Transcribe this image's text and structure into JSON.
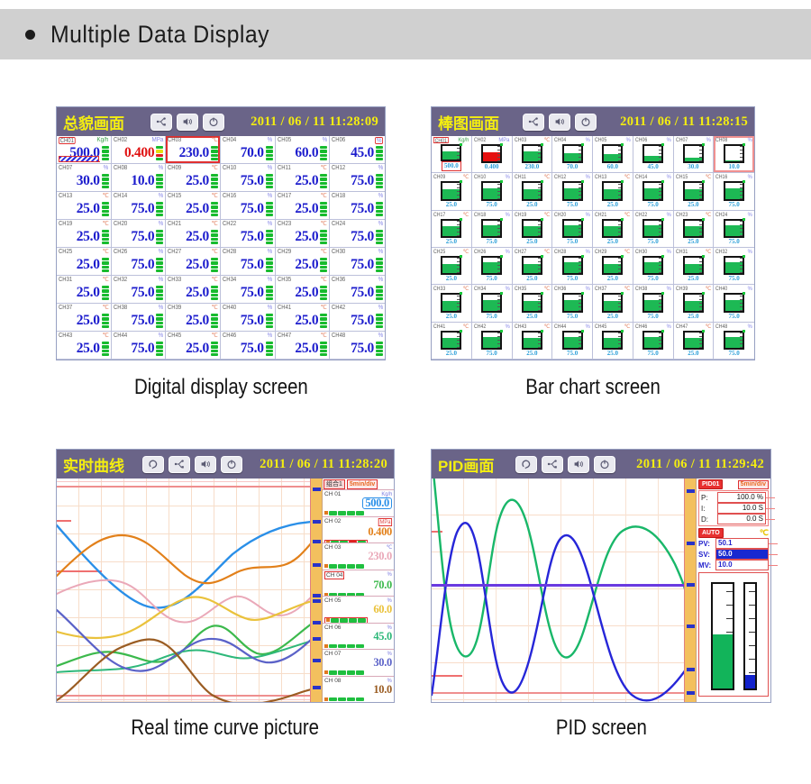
{
  "header": {
    "title": "Multiple Data Display"
  },
  "unit_colors": {
    "Kg/h": "#3aa04a",
    "MPa": "#8888e8",
    "℃": "#e07858",
    "%": "#8888e8"
  },
  "screens": {
    "digital": {
      "title": "总貌画面",
      "datetime": "2011 / 06 / 11  11:28:09",
      "caption": "Digital display screen",
      "icons": [
        "usb-icon",
        "speaker-icon",
        "power-icon"
      ],
      "channels": [
        {
          "id": "CH01",
          "value": "500.0",
          "unit": "Kg/h",
          "alarm": "label"
        },
        {
          "id": "CH02",
          "value": "0.400",
          "unit": "MPa",
          "alarm": "value",
          "ind": "mixed"
        },
        {
          "id": "CH03",
          "value": "230.0",
          "unit": "℃",
          "alarm": "cell"
        },
        {
          "id": "CH04",
          "value": "70.0",
          "unit": "%"
        },
        {
          "id": "CH05",
          "value": "60.0",
          "unit": "%"
        },
        {
          "id": "CH06",
          "value": "45.0",
          "unit": "%",
          "alarm": "unit"
        },
        {
          "id": "CH07",
          "value": "30.0",
          "unit": "%"
        },
        {
          "id": "CH08",
          "value": "10.0",
          "unit": "%"
        },
        {
          "id": "CH09",
          "value": "25.0",
          "unit": "℃"
        },
        {
          "id": "CH10",
          "value": "75.0",
          "unit": "%"
        },
        {
          "id": "CH11",
          "value": "25.0",
          "unit": "℃"
        },
        {
          "id": "CH12",
          "value": "75.0",
          "unit": "%"
        },
        {
          "id": "CH13",
          "value": "25.0",
          "unit": "℃"
        },
        {
          "id": "CH14",
          "value": "75.0",
          "unit": "%"
        },
        {
          "id": "CH15",
          "value": "25.0",
          "unit": "℃"
        },
        {
          "id": "CH16",
          "value": "75.0",
          "unit": "%"
        },
        {
          "id": "CH17",
          "value": "25.0",
          "unit": "℃"
        },
        {
          "id": "CH18",
          "value": "75.0",
          "unit": "%"
        },
        {
          "id": "CH19",
          "value": "25.0",
          "unit": "℃"
        },
        {
          "id": "CH20",
          "value": "75.0",
          "unit": "%"
        },
        {
          "id": "CH21",
          "value": "25.0",
          "unit": "℃"
        },
        {
          "id": "CH22",
          "value": "75.0",
          "unit": "%"
        },
        {
          "id": "CH23",
          "value": "25.0",
          "unit": "℃"
        },
        {
          "id": "CH24",
          "value": "75.0",
          "unit": "%"
        },
        {
          "id": "CH25",
          "value": "25.0",
          "unit": "℃"
        },
        {
          "id": "CH26",
          "value": "75.0",
          "unit": "%"
        },
        {
          "id": "CH27",
          "value": "25.0",
          "unit": "℃"
        },
        {
          "id": "CH28",
          "value": "75.0",
          "unit": "%"
        },
        {
          "id": "CH29",
          "value": "25.0",
          "unit": "℃"
        },
        {
          "id": "CH30",
          "value": "75.0",
          "unit": "%"
        },
        {
          "id": "CH31",
          "value": "25.0",
          "unit": "℃"
        },
        {
          "id": "CH32",
          "value": "75.0",
          "unit": "%"
        },
        {
          "id": "CH33",
          "value": "25.0",
          "unit": "℃"
        },
        {
          "id": "CH34",
          "value": "75.0",
          "unit": "%"
        },
        {
          "id": "CH35",
          "value": "25.0",
          "unit": "℃"
        },
        {
          "id": "CH36",
          "value": "75.0",
          "unit": "%"
        },
        {
          "id": "CH37",
          "value": "25.0",
          "unit": "℃"
        },
        {
          "id": "CH38",
          "value": "75.0",
          "unit": "%"
        },
        {
          "id": "CH39",
          "value": "25.0",
          "unit": "℃"
        },
        {
          "id": "CH40",
          "value": "75.0",
          "unit": "%"
        },
        {
          "id": "CH41",
          "value": "25.0",
          "unit": "℃"
        },
        {
          "id": "CH42",
          "value": "75.0",
          "unit": "%"
        },
        {
          "id": "CH43",
          "value": "25.0",
          "unit": "℃"
        },
        {
          "id": "CH44",
          "value": "75.0",
          "unit": "%"
        },
        {
          "id": "CH45",
          "value": "25.0",
          "unit": "℃"
        },
        {
          "id": "CH46",
          "value": "75.0",
          "unit": "%"
        },
        {
          "id": "CH47",
          "value": "25.0",
          "unit": "℃"
        },
        {
          "id": "CH48",
          "value": "75.0",
          "unit": "%"
        }
      ]
    },
    "bar": {
      "title": "棒图画面",
      "datetime": "2011 / 06 / 11  11:28:15",
      "caption": "Bar chart screen",
      "icons": [
        "usb-icon",
        "speaker-icon",
        "power-icon"
      ],
      "channels": [
        {
          "id": "CH01",
          "value": "500.0",
          "unit": "Kg/h",
          "fill": 62,
          "alarm": "label"
        },
        {
          "id": "CH02",
          "value": "0.400",
          "unit": "MPa",
          "fill": 62,
          "bar": "red"
        },
        {
          "id": "CH03",
          "value": "230.0",
          "unit": "℃",
          "fill": 64
        },
        {
          "id": "CH04",
          "value": "70.0",
          "unit": "%",
          "fill": 54
        },
        {
          "id": "CH05",
          "value": "60.0",
          "unit": "%",
          "fill": 48
        },
        {
          "id": "CH06",
          "value": "45.0",
          "unit": "%",
          "fill": 34
        },
        {
          "id": "CH07",
          "value": "30.0",
          "unit": "%",
          "fill": 24
        },
        {
          "id": "CH08",
          "value": "10.0",
          "unit": "%",
          "fill": 5,
          "alarm": "cell"
        },
        {
          "id": "CH09",
          "value": "25.0",
          "unit": "℃",
          "fill": 62
        },
        {
          "id": "CH10",
          "value": "75.0",
          "unit": "%",
          "fill": 70
        },
        {
          "id": "CH11",
          "value": "25.0",
          "unit": "℃",
          "fill": 62
        },
        {
          "id": "CH12",
          "value": "75.0",
          "unit": "%",
          "fill": 70
        },
        {
          "id": "CH13",
          "value": "25.0",
          "unit": "℃",
          "fill": 62
        },
        {
          "id": "CH14",
          "value": "75.0",
          "unit": "%",
          "fill": 70
        },
        {
          "id": "CH15",
          "value": "25.0",
          "unit": "℃",
          "fill": 62
        },
        {
          "id": "CH16",
          "value": "75.0",
          "unit": "%",
          "fill": 70
        },
        {
          "id": "CH17",
          "value": "25.0",
          "unit": "℃",
          "fill": 62
        },
        {
          "id": "CH18",
          "value": "75.0",
          "unit": "%",
          "fill": 70
        },
        {
          "id": "CH19",
          "value": "25.0",
          "unit": "℃",
          "fill": 62
        },
        {
          "id": "CH20",
          "value": "75.0",
          "unit": "%",
          "fill": 70
        },
        {
          "id": "CH21",
          "value": "25.0",
          "unit": "℃",
          "fill": 62
        },
        {
          "id": "CH22",
          "value": "75.0",
          "unit": "%",
          "fill": 70
        },
        {
          "id": "CH23",
          "value": "25.0",
          "unit": "℃",
          "fill": 62
        },
        {
          "id": "CH24",
          "value": "75.0",
          "unit": "%",
          "fill": 70
        },
        {
          "id": "CH25",
          "value": "25.0",
          "unit": "℃",
          "fill": 62
        },
        {
          "id": "CH26",
          "value": "75.0",
          "unit": "%",
          "fill": 70
        },
        {
          "id": "CH27",
          "value": "25.0",
          "unit": "℃",
          "fill": 62
        },
        {
          "id": "CH28",
          "value": "75.0",
          "unit": "%",
          "fill": 70
        },
        {
          "id": "CH29",
          "value": "25.0",
          "unit": "℃",
          "fill": 62
        },
        {
          "id": "CH30",
          "value": "75.0",
          "unit": "%",
          "fill": 70
        },
        {
          "id": "CH31",
          "value": "25.0",
          "unit": "℃",
          "fill": 62
        },
        {
          "id": "CH32",
          "value": "75.0",
          "unit": "%",
          "fill": 70
        },
        {
          "id": "CH33",
          "value": "25.0",
          "unit": "℃",
          "fill": 62
        },
        {
          "id": "CH34",
          "value": "75.0",
          "unit": "%",
          "fill": 70
        },
        {
          "id": "CH35",
          "value": "25.0",
          "unit": "℃",
          "fill": 62
        },
        {
          "id": "CH36",
          "value": "75.0",
          "unit": "%",
          "fill": 70
        },
        {
          "id": "CH37",
          "value": "25.0",
          "unit": "℃",
          "fill": 62
        },
        {
          "id": "CH38",
          "value": "75.0",
          "unit": "%",
          "fill": 70
        },
        {
          "id": "CH39",
          "value": "25.0",
          "unit": "℃",
          "fill": 62
        },
        {
          "id": "CH40",
          "value": "75.0",
          "unit": "%",
          "fill": 70
        },
        {
          "id": "CH41",
          "value": "25.0",
          "unit": "℃",
          "fill": 62
        },
        {
          "id": "CH42",
          "value": "75.0",
          "unit": "%",
          "fill": 70
        },
        {
          "id": "CH43",
          "value": "25.0",
          "unit": "℃",
          "fill": 62
        },
        {
          "id": "CH44",
          "value": "75.0",
          "unit": "%",
          "fill": 70
        },
        {
          "id": "CH45",
          "value": "25.0",
          "unit": "℃",
          "fill": 62
        },
        {
          "id": "CH46",
          "value": "75.0",
          "unit": "%",
          "fill": 70
        },
        {
          "id": "CH47",
          "value": "25.0",
          "unit": "℃",
          "fill": 62
        },
        {
          "id": "CH48",
          "value": "75.0",
          "unit": "%",
          "fill": 70
        }
      ]
    },
    "curve": {
      "title": "实时曲线",
      "datetime": "2011 / 06 / 11  11:28:20",
      "caption": "Real time curve picture",
      "icons": [
        "loop-icon",
        "usb-icon",
        "speaker-icon",
        "power-icon"
      ],
      "group_label": "组合1",
      "time_div": "5min/div",
      "channels": [
        {
          "id": "CH 01",
          "value": "500.0",
          "unit": "Kg/h",
          "color": "#2a8fe8",
          "box": "value"
        },
        {
          "id": "CH 02",
          "value": "0.400",
          "unit": "MPa",
          "color": "#e2801a",
          "box": "ind",
          "unit_box": true,
          "ind_red": true
        },
        {
          "id": "CH 03",
          "value": "230.0",
          "unit": "℃",
          "color": "#eaa8b8"
        },
        {
          "id": "CH 04",
          "value": "70.0",
          "unit": "%",
          "color": "#3cb94c",
          "box": "label"
        },
        {
          "id": "CH 05",
          "value": "60.0",
          "unit": "%",
          "color": "#eac23c",
          "box": "ind"
        },
        {
          "id": "CH 06",
          "value": "45.0",
          "unit": "%",
          "color": "#2eb87a"
        },
        {
          "id": "CH 07",
          "value": "30.0",
          "unit": "%",
          "color": "#5b62c8"
        },
        {
          "id": "CH 08",
          "value": "10.0",
          "unit": "%",
          "color": "#9a5c22"
        }
      ]
    },
    "pid": {
      "title": "PID画面",
      "datetime": "2011 / 06 / 11  11:29:42",
      "caption": "PID screen",
      "icons": [
        "loop-icon",
        "usb-icon",
        "speaker-icon",
        "power-icon"
      ],
      "loop_label": "PID01",
      "time_div": "5min/div",
      "params": [
        {
          "label": "P:",
          "value": "100.0 %"
        },
        {
          "label": "I:",
          "value": "10.0 S"
        },
        {
          "label": "D:",
          "value": "0.0 S"
        }
      ],
      "mode_label": "AUTO",
      "unit": "℃",
      "pv": {
        "label": "PV:",
        "value": "50.1"
      },
      "sv": {
        "label": "SV:",
        "value": "50.0"
      },
      "mv": {
        "label": "MV:",
        "value": "10.0"
      },
      "gauges": [
        {
          "name": "pv-gauge",
          "fill": 52,
          "color": "#12b45a"
        },
        {
          "name": "mv-gauge",
          "fill": 13,
          "color": "#1222cc"
        }
      ]
    }
  }
}
